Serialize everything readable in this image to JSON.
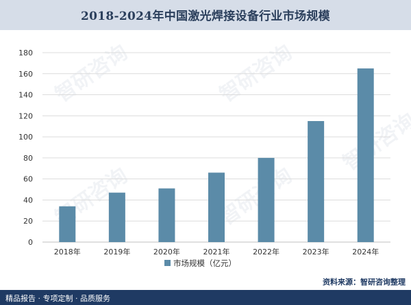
{
  "header": {
    "title": "2018-2024年中国激光焊接设备行业市场规模"
  },
  "chart_data": {
    "type": "bar",
    "categories": [
      "2018年",
      "2019年",
      "2020年",
      "2021年",
      "2022年",
      "2023年",
      "2024年"
    ],
    "series": [
      {
        "name": "市场规模（亿元）",
        "values": [
          34,
          47,
          51,
          66,
          80,
          115,
          165
        ]
      }
    ],
    "ylim": [
      0,
      180
    ],
    "yticks": [
      0,
      20,
      40,
      60,
      80,
      100,
      120,
      140,
      160,
      180
    ],
    "grid": true,
    "legend": "bottom-center",
    "bar_color": "#5b8ba8"
  },
  "watermark": {
    "text": "智研咨询"
  },
  "source": {
    "label": "资料来源：",
    "org": "智研咨询整理"
  },
  "footer": {
    "text": "精品报告 · 专项定制 · 品质服务"
  },
  "colors": {
    "title_bg": "#d6dde8",
    "title_text": "#2b3f5c",
    "footer_bg": "#1f3a63",
    "grid": "#dcdcdc",
    "axis_text": "#333333"
  }
}
